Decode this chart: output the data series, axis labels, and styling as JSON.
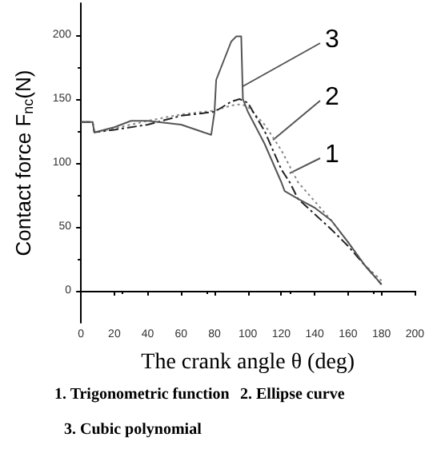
{
  "chart_data": {
    "type": "line",
    "xlabel": "The crank angle θ (deg)",
    "ylabel": "Contact force F$_{nc}$(N)",
    "xlim": [
      0,
      200
    ],
    "xticks": [
      0,
      20,
      40,
      60,
      80,
      100,
      120,
      140,
      160,
      180,
      200
    ],
    "ylim": [
      -25,
      225
    ],
    "yticks": [
      0,
      50,
      100,
      150,
      200
    ],
    "marker": "none",
    "series": [
      {
        "color": "#888888",
        "line_style": "dotted",
        "x": [
          0,
          7,
          8,
          20,
          40,
          60,
          80,
          90,
          96,
          100,
          110,
          120,
          130,
          140,
          150,
          160,
          170,
          180
        ],
        "values": [
          132,
          132,
          124,
          127,
          133,
          138,
          141,
          145,
          146,
          144,
          130,
          110,
          85,
          70,
          55,
          38,
          20,
          8
        ]
      },
      {
        "color": "#222222",
        "line_style": "dashed",
        "x": [
          0,
          7,
          8,
          20,
          40,
          60,
          80,
          90,
          95,
          100,
          110,
          120,
          125,
          130,
          140,
          150,
          160,
          170,
          180
        ],
        "values": [
          132,
          132,
          124,
          126,
          130,
          137,
          140,
          148,
          150,
          147,
          125,
          95,
          85,
          72,
          60,
          48,
          35,
          20,
          5
        ]
      },
      {
        "color": "#555555",
        "line_style": "solid",
        "x": [
          0,
          7,
          8,
          20,
          30,
          40,
          60,
          78,
          80,
          81,
          90,
          93,
          96,
          97,
          100,
          110,
          120,
          122,
          130,
          140,
          150,
          160,
          170,
          178,
          180
        ],
        "values": [
          132,
          132,
          124,
          128,
          133,
          133,
          130,
          122,
          140,
          165,
          195,
          199,
          199,
          150,
          140,
          115,
          85,
          78,
          72,
          65,
          55,
          38,
          20,
          8,
          5
        ]
      }
    ],
    "annotations": [
      {
        "text": "3",
        "x": 97,
        "y": 160
      },
      {
        "text": "2",
        "x": 115,
        "y": 118
      },
      {
        "text": "1",
        "x": 125,
        "y": 92
      },
      "1. Trigonometric function",
      "2. Ellipse curve",
      "3. Cubic polynomial"
    ]
  }
}
